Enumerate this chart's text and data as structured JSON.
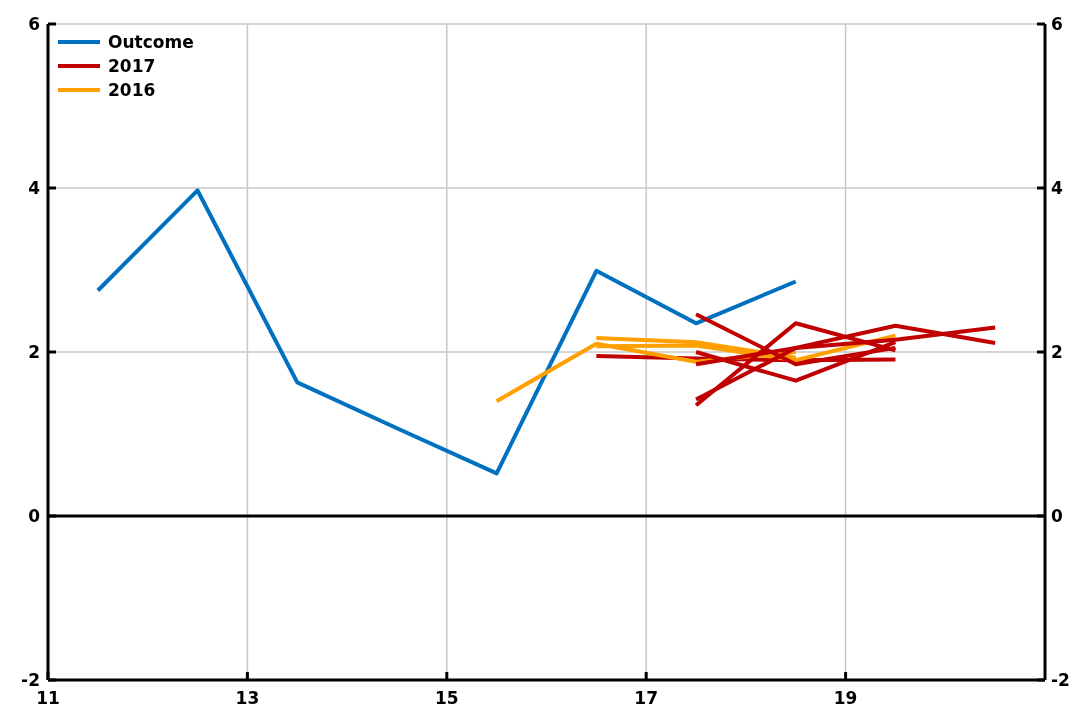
{
  "chart_data": {
    "type": "line",
    "xlim": [
      11,
      21
    ],
    "xticks": [
      11,
      13,
      15,
      17,
      19
    ],
    "ylim": [
      -2,
      6
    ],
    "yticks": [
      -2,
      0,
      2,
      4,
      6
    ],
    "y2lim": [
      -2,
      6
    ],
    "y2ticks": [
      -2,
      0,
      2,
      4,
      6
    ],
    "grid": true,
    "legend": "top left",
    "line_style": "solid",
    "marker": "none",
    "ref_lines": [
      {
        "axis": "y",
        "value": 0,
        "color": "#000000"
      }
    ],
    "series": [
      {
        "name": "Outcome",
        "color": "#0070c0",
        "x": [
          11.5,
          12.5,
          13.5,
          14.5,
          15.5,
          16.5,
          17.5,
          18.5
        ],
        "values": [
          2.75,
          3.97,
          1.63,
          1.07,
          0.52,
          2.99,
          2.35,
          2.86
        ]
      },
      {
        "name": "2017",
        "color": "#c00000",
        "x": [
          16.5,
          17.5,
          18.5,
          19.5
        ],
        "values": [
          1.95,
          1.92,
          1.9,
          1.91
        ]
      },
      {
        "name": "2016",
        "color": "#ffa000",
        "x": [
          15.5,
          16.5,
          17.5,
          18.5
        ],
        "values": [
          1.4,
          2.1,
          1.88,
          2.0
        ]
      },
      {
        "color": "#ffa000",
        "x": [
          16.5,
          17.5,
          18.5
        ],
        "values": [
          2.17,
          2.12,
          1.93
        ]
      },
      {
        "color": "#ffa000",
        "x": [
          16.5,
          17.5,
          18.5,
          19.5
        ],
        "values": [
          2.07,
          2.08,
          1.9,
          2.2
        ]
      },
      {
        "color": "#c00000",
        "x": [
          17.5,
          18.5,
          19.5
        ],
        "values": [
          2.46,
          1.85,
          2.05
        ]
      },
      {
        "color": "#c00000",
        "x": [
          17.5,
          18.5,
          19.5
        ],
        "values": [
          1.35,
          2.35,
          2.02
        ]
      },
      {
        "color": "#c00000",
        "x": [
          17.5,
          18.5,
          19.5,
          20.5
        ],
        "values": [
          1.42,
          2.05,
          2.32,
          2.11
        ]
      },
      {
        "color": "#c00000",
        "x": [
          17.5,
          18.5,
          19.5
        ],
        "values": [
          2.0,
          1.65,
          2.12
        ]
      },
      {
        "color": "#c00000",
        "x": [
          17.5,
          18.5,
          19.5,
          20.5
        ],
        "values": [
          1.85,
          2.05,
          2.15,
          2.3
        ]
      }
    ]
  }
}
